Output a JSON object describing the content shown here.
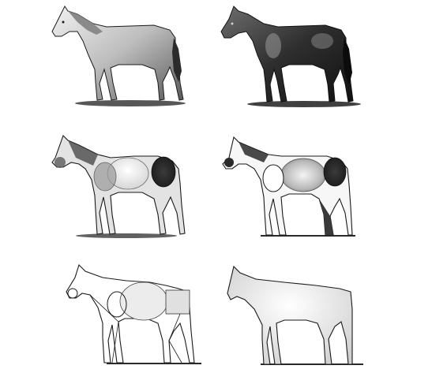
{
  "figure": {
    "panels": [
      {
        "id": "stage-6-finished-light",
        "shading": "full",
        "tone": "light"
      },
      {
        "id": "stage-5-finished-dark",
        "shading": "full",
        "tone": "dark"
      },
      {
        "id": "stage-4-shaded-forms",
        "shading": "partial",
        "tone": "mid"
      },
      {
        "id": "stage-3-form-tones",
        "shading": "partial",
        "tone": "light"
      },
      {
        "id": "stage-2-construction",
        "shading": "faint",
        "tone": "outline"
      },
      {
        "id": "stage-1-silhouette",
        "shading": "faint",
        "tone": "outline"
      }
    ],
    "colors": {
      "background": "#ffffff",
      "line": "#1a1a1a",
      "dark_fill": "#2b2b2b",
      "mid_fill": "#8a8a8a",
      "light_fill": "#d6d6d6",
      "ground": "#3a3a3a"
    }
  }
}
